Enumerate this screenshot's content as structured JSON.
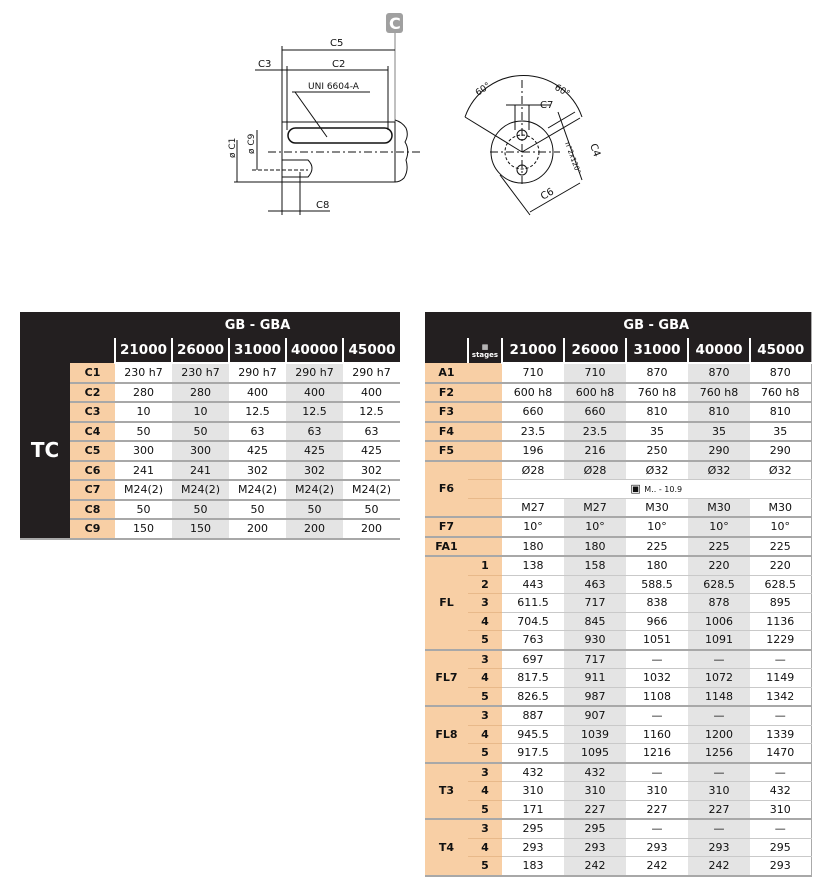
{
  "drawing": {
    "badge": "C",
    "labels": {
      "c5": "C5",
      "c3": "C3",
      "c2": "C2",
      "uni": "UNI 6604-A",
      "c1": "ø C1",
      "c9": "ø C9",
      "c8": "C8",
      "angle_left": "60°",
      "angle_right": "60°",
      "c7": "C7",
      "c4": "C4",
      "holes": "n°2x120°",
      "c6": "C6"
    }
  },
  "left_table": {
    "group": "TC",
    "title": "GB - GBA",
    "columns": [
      "21000",
      "26000",
      "31000",
      "40000",
      "45000"
    ],
    "rows": [
      {
        "label": "C1",
        "values": [
          "230 h7",
          "230 h7",
          "290 h7",
          "290 h7",
          "290 h7"
        ]
      },
      {
        "label": "C2",
        "values": [
          "280",
          "280",
          "400",
          "400",
          "400"
        ]
      },
      {
        "label": "C3",
        "values": [
          "10",
          "10",
          "12.5",
          "12.5",
          "12.5"
        ]
      },
      {
        "label": "C4",
        "values": [
          "50",
          "50",
          "63",
          "63",
          "63"
        ]
      },
      {
        "label": "C5",
        "values": [
          "300",
          "300",
          "425",
          "425",
          "425"
        ]
      },
      {
        "label": "C6",
        "values": [
          "241",
          "241",
          "302",
          "302",
          "302"
        ]
      },
      {
        "label": "C7",
        "values": [
          "M24(2)",
          "M24(2)",
          "M24(2)",
          "M24(2)",
          "M24(2)"
        ]
      },
      {
        "label": "C8",
        "values": [
          "50",
          "50",
          "50",
          "50",
          "50"
        ]
      },
      {
        "label": "C9",
        "values": [
          "150",
          "150",
          "200",
          "200",
          "200"
        ]
      }
    ]
  },
  "right_table": {
    "title": "GB - GBA",
    "stages_header": "stages",
    "columns": [
      "21000",
      "26000",
      "31000",
      "40000",
      "45000"
    ],
    "groups": [
      {
        "label": "A1",
        "rows": [
          {
            "stage": "",
            "values": [
              "710",
              "710",
              "870",
              "870",
              "870"
            ]
          }
        ]
      },
      {
        "label": "F2",
        "rows": [
          {
            "stage": "",
            "values": [
              "600 h8",
              "600 h8",
              "760 h8",
              "760 h8",
              "760 h8"
            ]
          }
        ]
      },
      {
        "label": "F3",
        "rows": [
          {
            "stage": "",
            "values": [
              "660",
              "660",
              "810",
              "810",
              "810"
            ]
          }
        ]
      },
      {
        "label": "F4",
        "rows": [
          {
            "stage": "",
            "values": [
              "23.5",
              "23.5",
              "35",
              "35",
              "35"
            ]
          }
        ]
      },
      {
        "label": "F5",
        "rows": [
          {
            "stage": "",
            "values": [
              "196",
              "216",
              "250",
              "290",
              "290"
            ]
          }
        ]
      },
      {
        "label": "F6",
        "rows": [
          {
            "stage": "",
            "values": [
              "Ø28",
              "Ø28",
              "Ø32",
              "Ø32",
              "Ø32"
            ]
          },
          {
            "stage": "",
            "note": "M.. - 10.9"
          },
          {
            "stage": "",
            "values": [
              "M27",
              "M27",
              "M30",
              "M30",
              "M30"
            ]
          }
        ]
      },
      {
        "label": "F7",
        "rows": [
          {
            "stage": "",
            "values": [
              "10°",
              "10°",
              "10°",
              "10°",
              "10°"
            ]
          }
        ]
      },
      {
        "label": "FA1",
        "rows": [
          {
            "stage": "",
            "values": [
              "180",
              "180",
              "225",
              "225",
              "225"
            ]
          }
        ]
      },
      {
        "label": "FL",
        "rows": [
          {
            "stage": "1",
            "values": [
              "138",
              "158",
              "180",
              "220",
              "220"
            ]
          },
          {
            "stage": "2",
            "values": [
              "443",
              "463",
              "588.5",
              "628.5",
              "628.5"
            ]
          },
          {
            "stage": "3",
            "values": [
              "611.5",
              "717",
              "838",
              "878",
              "895"
            ]
          },
          {
            "stage": "4",
            "values": [
              "704.5",
              "845",
              "966",
              "1006",
              "1136"
            ]
          },
          {
            "stage": "5",
            "values": [
              "763",
              "930",
              "1051",
              "1091",
              "1229"
            ]
          }
        ]
      },
      {
        "label": "FL7",
        "rows": [
          {
            "stage": "3",
            "values": [
              "697",
              "717",
              "—",
              "—",
              "—"
            ]
          },
          {
            "stage": "4",
            "values": [
              "817.5",
              "911",
              "1032",
              "1072",
              "1149"
            ]
          },
          {
            "stage": "5",
            "values": [
              "826.5",
              "987",
              "1108",
              "1148",
              "1342"
            ]
          }
        ]
      },
      {
        "label": "FL8",
        "rows": [
          {
            "stage": "3",
            "values": [
              "887",
              "907",
              "—",
              "—",
              "—"
            ]
          },
          {
            "stage": "4",
            "values": [
              "945.5",
              "1039",
              "1160",
              "1200",
              "1339"
            ]
          },
          {
            "stage": "5",
            "values": [
              "917.5",
              "1095",
              "1216",
              "1256",
              "1470"
            ]
          }
        ]
      },
      {
        "label": "T3",
        "rows": [
          {
            "stage": "3",
            "values": [
              "432",
              "432",
              "—",
              "—",
              "—"
            ]
          },
          {
            "stage": "4",
            "values": [
              "310",
              "310",
              "310",
              "310",
              "432"
            ]
          },
          {
            "stage": "5",
            "values": [
              "171",
              "227",
              "227",
              "227",
              "310"
            ]
          }
        ]
      },
      {
        "label": "T4",
        "rows": [
          {
            "stage": "3",
            "values": [
              "295",
              "295",
              "—",
              "—",
              "—"
            ]
          },
          {
            "stage": "4",
            "values": [
              "293",
              "293",
              "293",
              "293",
              "295"
            ]
          },
          {
            "stage": "5",
            "values": [
              "183",
              "242",
              "242",
              "242",
              "293"
            ]
          }
        ]
      }
    ]
  }
}
